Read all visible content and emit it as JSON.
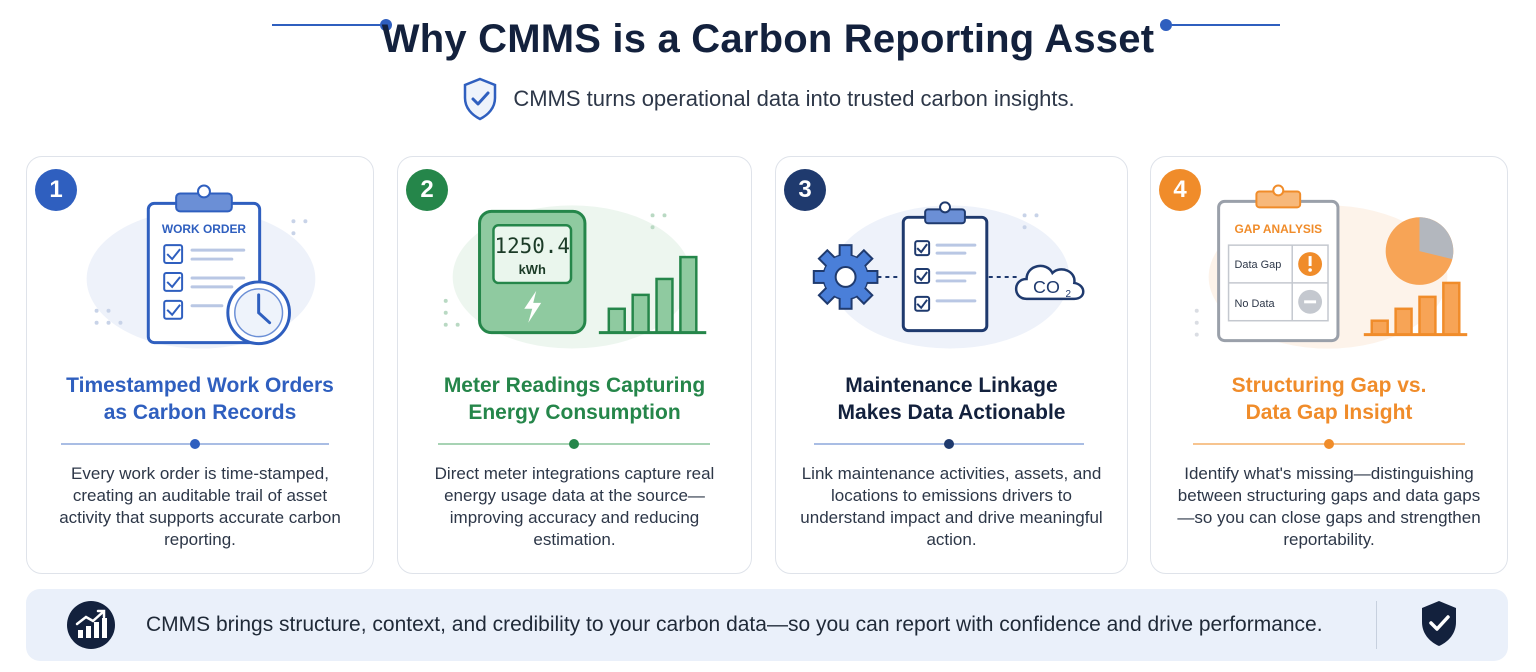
{
  "header": {
    "title": "Why CMMS is a Carbon Reporting Asset",
    "subtitle": "CMMS turns operational data into trusted carbon insights.",
    "icon": "shield-check-icon"
  },
  "colors": {
    "blue": "#2f5fbf",
    "green": "#25864a",
    "navy": "#1f3a6e",
    "orange": "#f08c2a"
  },
  "cards": [
    {
      "number": "1",
      "title_line1": "Timestamped Work Orders",
      "title_line2": "as Carbon Records",
      "body": "Every work order is time-stamped, creating an auditable trail of asset activity that supports accurate carbon reporting.",
      "illustration_label": "WORK ORDER",
      "icon": "clipboard-clock-icon"
    },
    {
      "number": "2",
      "title_line1": "Meter Readings Capturing",
      "title_line2": "Energy Consumption",
      "body": "Direct meter integrations capture real energy usage data at the source—improving accuracy and reducing estimation.",
      "meter_value": "1250.4",
      "meter_unit": "kWh",
      "icon": "energy-meter-icon"
    },
    {
      "number": "3",
      "title_line1": "Maintenance Linkage",
      "title_line2": "Makes Data Actionable",
      "body": "Link maintenance activities, assets, and locations to emissions drivers to understand impact and drive meaningful action.",
      "cloud_label": "CO",
      "cloud_sub": "2",
      "icon": "gear-clipboard-cloud-icon"
    },
    {
      "number": "4",
      "title_line1": "Structuring Gap vs.",
      "title_line2": "Data Gap Insight",
      "body": "Identify what's missing—distinguishing between structuring gaps and data gaps—so you can close gaps and strengthen reportability.",
      "illustration_label": "GAP ANALYSIS",
      "row1": "Data Gap",
      "row2": "No Data",
      "icon": "gap-analysis-icon"
    }
  ],
  "footer": {
    "text": "CMMS brings structure, context, and credibility to your carbon data—so you can report with confidence and drive performance.",
    "icon": "growth-chart-icon",
    "end_icon": "shield-check-icon"
  }
}
